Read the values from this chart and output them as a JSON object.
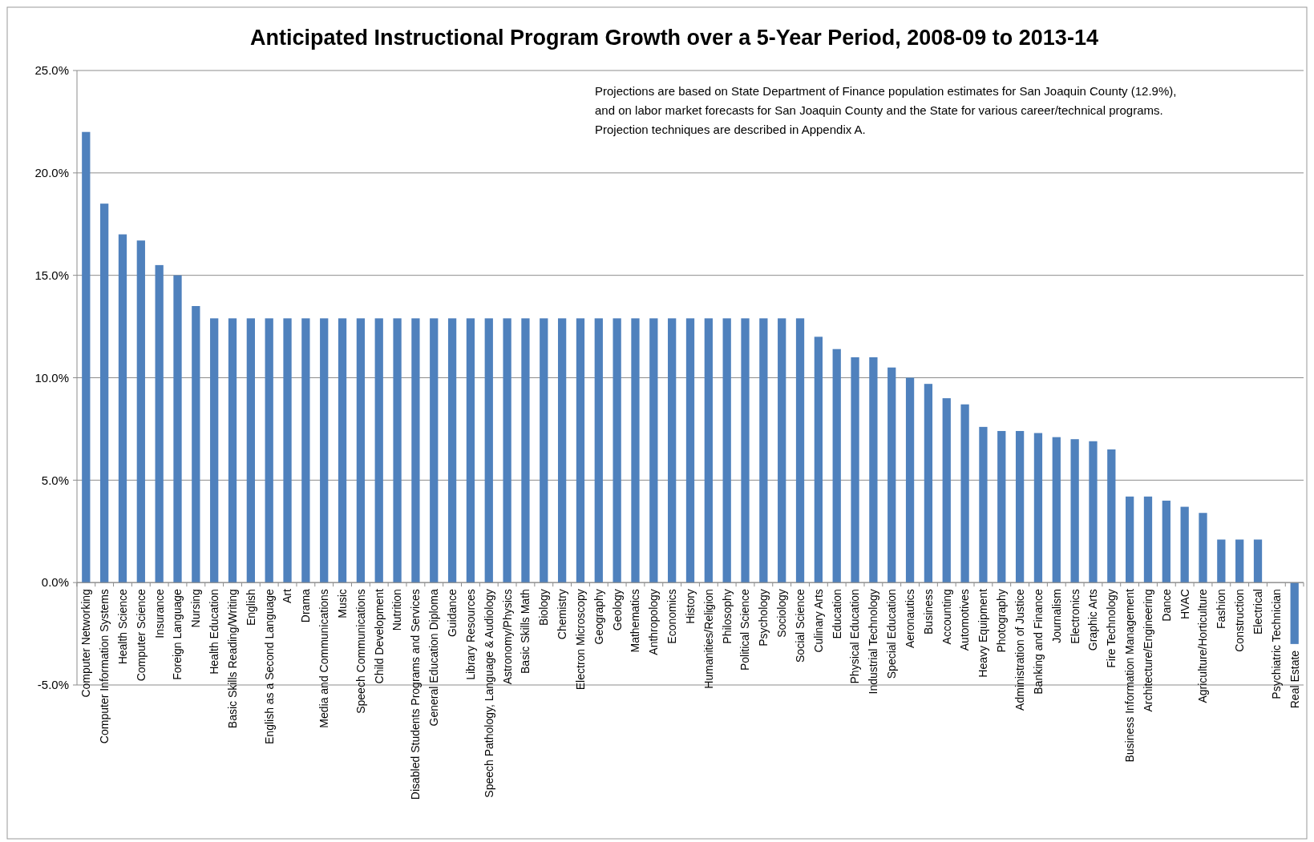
{
  "chart_data": {
    "type": "bar",
    "title": "Anticipated Instructional Program Growth over a 5-Year Period, 2008-09 to 2013-14",
    "annotations": [
      "Projections are based on State Department of Finance population estimates for San Joaquin County (12.9%),",
      "and on labor market forecasts for San Joaquin County and the State for various career/technical programs.",
      "Projection techniques are described in Appendix A."
    ],
    "categories": [
      "Computer Networking",
      "Computer Information Systems",
      "Health Science",
      "Computer Science",
      "Insurance",
      "Foreign Language",
      "Nursing",
      "Health Education",
      "Basic Skills Reading/Writing",
      "English",
      "English as a Second Language",
      "Art",
      "Drama",
      "Media and Communications",
      "Music",
      "Speech Communications",
      "Child Development",
      "Nutrition",
      "Disabled Students Programs and Services",
      "General Education Diploma",
      "Guidance",
      "Library Resources",
      "Speech Pathology, Language & Audiology",
      "Astronomy/Physics",
      "Basic Skills Math",
      "Biology",
      "Chemistry",
      "Electron Microscopy",
      "Geography",
      "Geology",
      "Mathematics",
      "Anthropology",
      "Economics",
      "History",
      "Humanities/Religion",
      "Philosophy",
      "Political Science",
      "Psychology",
      "Sociology",
      "Social Science",
      "Culinary Arts",
      "Education",
      "Physical Education",
      "Industrial Technology",
      "Special Education",
      "Aeronautics",
      "Business",
      "Accounting",
      "Automotives",
      "Heavy Equipment",
      "Photography",
      "Administration of Justice",
      "Banking and Finance",
      "Journalism",
      "Electronics",
      "Graphic Arts",
      "Fire Technology",
      "Business Information Management",
      "Architecture/Engineering",
      "Dance",
      "HVAC",
      "Agriculture/Horticulture",
      "Fashion",
      "Construction",
      "Electrical",
      "Psychiatric Technician",
      "Real Estate"
    ],
    "values": [
      22.0,
      18.5,
      17.0,
      16.7,
      15.5,
      15.0,
      13.5,
      12.9,
      12.9,
      12.9,
      12.9,
      12.9,
      12.9,
      12.9,
      12.9,
      12.9,
      12.9,
      12.9,
      12.9,
      12.9,
      12.9,
      12.9,
      12.9,
      12.9,
      12.9,
      12.9,
      12.9,
      12.9,
      12.9,
      12.9,
      12.9,
      12.9,
      12.9,
      12.9,
      12.9,
      12.9,
      12.9,
      12.9,
      12.9,
      12.9,
      12.0,
      11.4,
      11.0,
      11.0,
      10.5,
      10.0,
      9.7,
      9.0,
      8.7,
      7.6,
      7.4,
      7.4,
      7.3,
      7.1,
      7.0,
      6.9,
      6.5,
      4.2,
      4.2,
      4.0,
      3.7,
      3.4,
      2.1,
      2.1,
      2.1,
      0,
      -3.0
    ],
    "color": "#4f81bd",
    "ylim": [
      -5,
      25
    ],
    "yticks": [
      {
        "value": -5,
        "label": "-5.0%"
      },
      {
        "value": 0,
        "label": "0.0%"
      },
      {
        "value": 5,
        "label": "5.0%"
      },
      {
        "value": 10,
        "label": "10.0%"
      },
      {
        "value": 15,
        "label": "15.0%"
      },
      {
        "value": 20,
        "label": "20.0%"
      },
      {
        "value": 25,
        "label": "25.0%"
      }
    ],
    "grid": "y"
  }
}
